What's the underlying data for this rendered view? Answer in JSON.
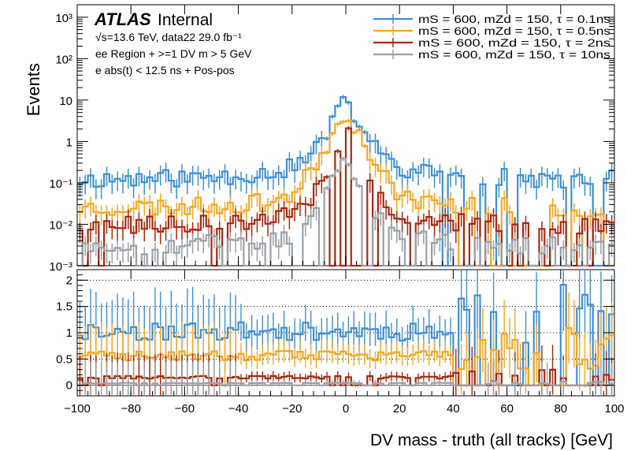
{
  "chart_data": {
    "type": "histogram",
    "experiment": "ATLAS",
    "status": "Internal",
    "info_lines": [
      "√s=13.6 TeV, data22 29.0 fb⁻¹",
      "ee Region + >=1 DV m > 5 GeV",
      "e abs(t) < 12.5 ns + Pos-pos"
    ],
    "xlabel": "DV mass - truth (all tracks) [GeV]",
    "ylabel": "Events",
    "xlim": [
      -100,
      100
    ],
    "top_ylim": [
      0.001,
      2000
    ],
    "top_yscale": "log",
    "top_yticks": [
      {
        "v": 0.001,
        "l": "10⁻³"
      },
      {
        "v": 0.01,
        "l": "10⁻²"
      },
      {
        "v": 0.1,
        "l": "10⁻¹"
      },
      {
        "v": 1,
        "l": "1"
      },
      {
        "v": 10,
        "l": "10"
      },
      {
        "v": 100,
        "l": "10²"
      },
      {
        "v": 1000,
        "l": "10³"
      }
    ],
    "bottom_ylim": [
      -0.2,
      2.2
    ],
    "bottom_yticks": [
      {
        "v": 0,
        "l": "0"
      },
      {
        "v": 0.5,
        "l": "0.5"
      },
      {
        "v": 1,
        "l": "1"
      },
      {
        "v": 1.5,
        "l": "1.5"
      },
      {
        "v": 2,
        "l": "2"
      }
    ],
    "xticks": [
      -100,
      -80,
      -60,
      -40,
      -20,
      0,
      20,
      40,
      60,
      80,
      100
    ],
    "legend_position": "top-right",
    "series": [
      {
        "name": "mS = 600, mZd = 150, τ = 0.1ns",
        "color": "#3f8fd2",
        "peak": 10.0,
        "floor": 0.12,
        "width": 3.5,
        "tail": 0.2,
        "ratio": 1.0,
        "seed": 11
      },
      {
        "name": "mS = 600, mZd = 150, τ = 0.5ns",
        "color": "#f5a623",
        "peak": 6.0,
        "floor": 0.025,
        "width": 3.5,
        "tail": 0.15,
        "ratio": 0.55,
        "seed": 23
      },
      {
        "name": "mS = 600, mZd = 150, τ = 2ns",
        "color": "#a9280e",
        "peak": 2.0,
        "floor": 0.009,
        "width": 3.0,
        "tail": 0.2,
        "ratio": 0.15,
        "seed": 37
      },
      {
        "name": "mS = 600, mZd = 150, τ = 10ns",
        "color": "#9aa0a6",
        "peak": 0.5,
        "floor": 0.003,
        "width": 3.0,
        "tail": 0.15,
        "ratio": 0.04,
        "seed": 53
      }
    ]
  }
}
